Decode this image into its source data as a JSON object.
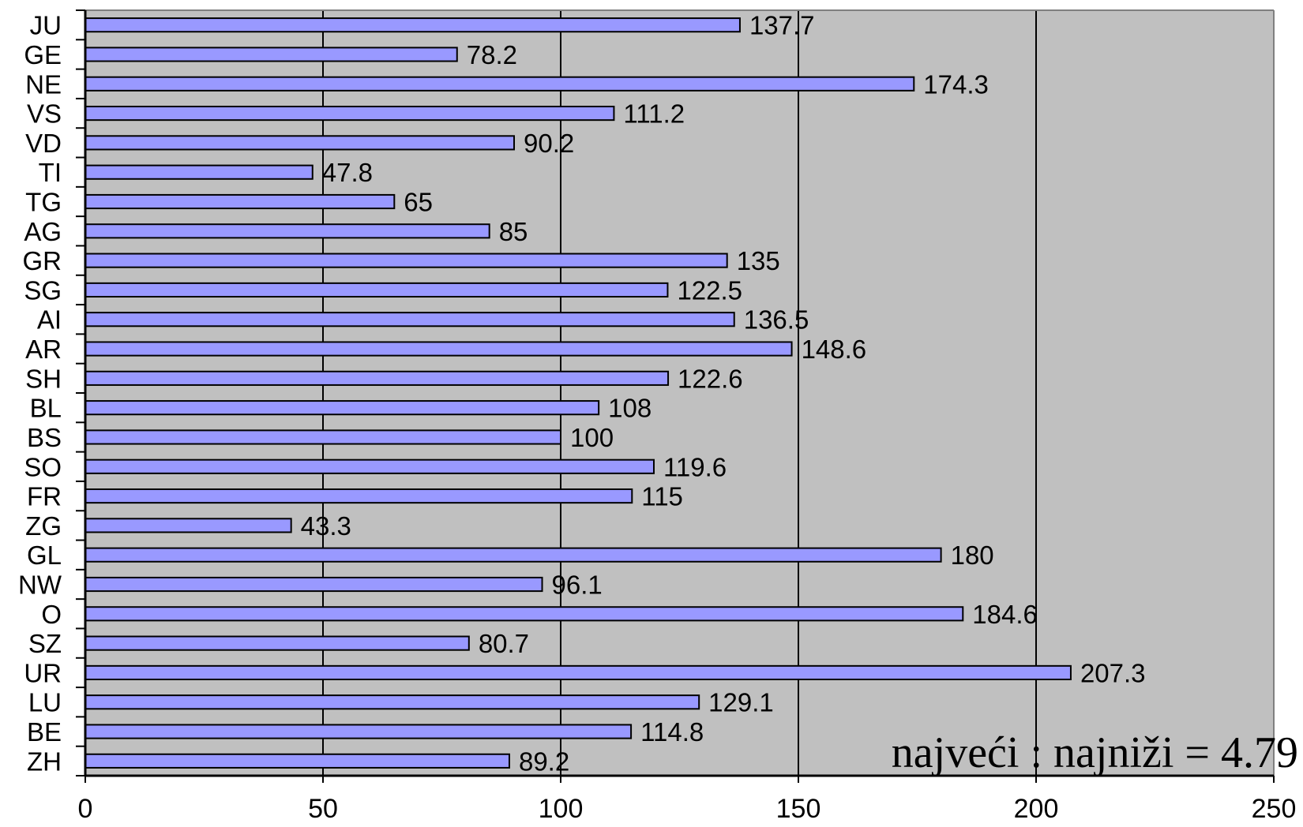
{
  "chart_data": {
    "type": "bar",
    "orientation": "horizontal",
    "categories": [
      "JU",
      "GE",
      "NE",
      "VS",
      "VD",
      "TI",
      "TG",
      "AG",
      "GR",
      "SG",
      "AI",
      "AR",
      "SH",
      "BL",
      "BS",
      "SO",
      "FR",
      "ZG",
      "GL",
      "NW",
      "O",
      "SZ",
      "UR",
      "LU",
      "BE",
      "ZH"
    ],
    "values": [
      137.7,
      78.2,
      174.3,
      111.2,
      90.2,
      47.8,
      65,
      85,
      135,
      122.5,
      136.5,
      148.6,
      122.6,
      108,
      100,
      119.6,
      115,
      43.3,
      180,
      96.1,
      184.6,
      80.7,
      207.3,
      129.1,
      114.8,
      89.2
    ],
    "value_labels": [
      "137.7",
      "78.2",
      "174.3",
      "111.2",
      "90.2",
      "47.8",
      "65",
      "85",
      "135",
      "122.5",
      "136.5",
      "148.6",
      "122.6",
      "108",
      "100",
      "119.6",
      "115",
      "43.3",
      "180",
      "96.1",
      "184.6",
      "80.7",
      "207.3",
      "129.1",
      "114.8",
      "89.2"
    ],
    "xlim": [
      0,
      250
    ],
    "xticks": [
      "0",
      "50",
      "100",
      "150",
      "200",
      "250"
    ],
    "title": "",
    "xlabel": "",
    "ylabel": "",
    "grid": "vertical major gridlines",
    "legend": "none",
    "annotation": "najveći : najniži = 4.79",
    "colors": {
      "plot_background": "#c0c0c0",
      "bar_fill": "#9999ff",
      "bar_stroke": "#000000",
      "gridline": "#000000"
    }
  }
}
